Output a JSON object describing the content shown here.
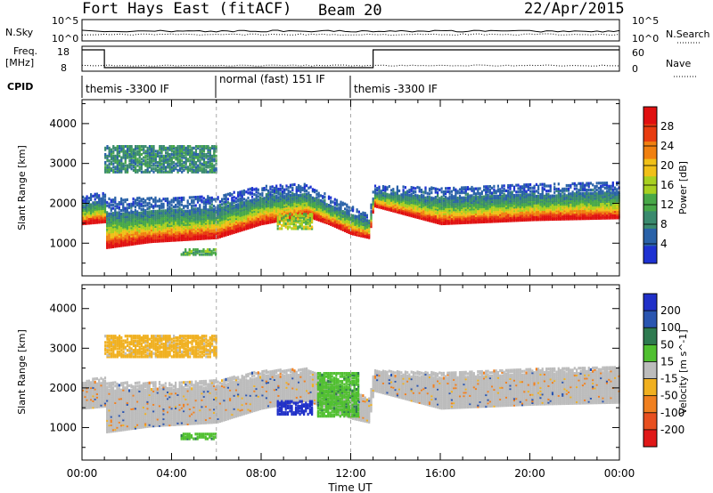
{
  "header": {
    "station": "Fort Hays East (fitACF)",
    "beam": "Beam 20",
    "date": "22/Apr/2015"
  },
  "side_labels": {
    "nsky": "N.Sky",
    "freq": "Freq.",
    "freq_unit": "[MHz]",
    "cpid": "CPID",
    "nsearch": "N.Search",
    "nave": "Nave"
  },
  "top_axes": {
    "nsky_ticks": [
      "10^5",
      "10^0"
    ],
    "nsearch_ticks": [
      "10^5",
      "10^0"
    ],
    "freq_ticks": [
      "18",
      "8"
    ],
    "nave_ticks": [
      "60",
      "0"
    ]
  },
  "modes": [
    {
      "label": "themis -3300 IF",
      "start_hour": 0,
      "end_hour": 6
    },
    {
      "label": "normal (fast) 151 IF",
      "start_hour": 6,
      "end_hour": 12
    },
    {
      "label": "themis -3300 IF",
      "start_hour": 12,
      "end_hour": 24
    }
  ],
  "x_axis": {
    "label": "Time UT",
    "tick_labels": [
      "00:00",
      "04:00",
      "08:00",
      "12:00",
      "16:00",
      "20:00",
      "00:00"
    ],
    "range_hours": [
      0,
      24
    ]
  },
  "colors": {
    "power_scale": [
      "#1e32d2",
      "#2a62a8",
      "#3a8a6e",
      "#48a848",
      "#a8d020",
      "#f0c018",
      "#f08010",
      "#e83c10",
      "#e01010"
    ],
    "velocity_scale": [
      "#2030c8",
      "#2a55b0",
      "#2e7a50",
      "#50c030",
      "#bcbcbc",
      "#f0b020",
      "#f08020",
      "#e85020",
      "#e01818"
    ]
  },
  "chart_data": [
    {
      "type": "heatmap",
      "name": "power",
      "ylabel": "Slant Range [km]",
      "y_ticks": [
        1000,
        2000,
        3000,
        4000
      ],
      "ylim": [
        180,
        4600
      ],
      "x_unit": "hours UT",
      "colorbar": {
        "label": "Power [dB]",
        "ticks": [
          "4",
          "8",
          "12",
          "16",
          "20",
          "24",
          "28"
        ],
        "range": [
          0,
          32
        ]
      },
      "echo_bands": [
        {
          "x": [
            0.0,
            1.0,
            1.05,
            3.0,
            6.0,
            8.0,
            10.0,
            11.0,
            12.0,
            12.8,
            13.0,
            16.0,
            20.0,
            24.0
          ],
          "low_km": [
            1450,
            1500,
            850,
            1000,
            1100,
            1450,
            1650,
            1450,
            1200,
            1100,
            1900,
            1450,
            1550,
            1600
          ],
          "high_km": [
            2150,
            2250,
            2100,
            2100,
            2150,
            2400,
            2450,
            2150,
            1900,
            1700,
            2400,
            2350,
            2450,
            2500
          ],
          "peak_power_db": 28
        }
      ],
      "patches": [
        {
          "x": [
            8.7,
            10.3
          ],
          "km": [
            1330,
            1700
          ],
          "power_db": 16
        },
        {
          "x": [
            4.4,
            6.0
          ],
          "km": [
            680,
            830
          ],
          "power_db": 12
        },
        {
          "x": [
            1.0,
            6.0
          ],
          "km": [
            2750,
            3400
          ],
          "power_db": 8
        }
      ]
    },
    {
      "type": "heatmap",
      "name": "velocity",
      "ylabel": "Slant Range [km]",
      "y_ticks": [
        1000,
        2000,
        3000,
        4000
      ],
      "ylim": [
        180,
        4600
      ],
      "x_unit": "hours UT",
      "colorbar": {
        "label": "Velocity [m s^-1]",
        "ticks": [
          "200",
          "100",
          "50",
          "15",
          "-15",
          "-50",
          "-100",
          "-200"
        ],
        "range": [
          -250,
          250
        ]
      },
      "echo_bands": [
        {
          "x": [
            0.0,
            1.0,
            1.05,
            3.0,
            6.0,
            8.0,
            10.0,
            11.0,
            12.0,
            12.8,
            13.0,
            16.0,
            20.0,
            24.0
          ],
          "low_km": [
            1450,
            1500,
            850,
            1000,
            1100,
            1450,
            1650,
            1450,
            1200,
            1100,
            1900,
            1450,
            1550,
            1600
          ],
          "high_km": [
            2150,
            2250,
            2100,
            2100,
            2150,
            2400,
            2450,
            2150,
            1900,
            1700,
            2400,
            2350,
            2450,
            2500
          ],
          "velocity": 0
        }
      ],
      "patches": [
        {
          "x": [
            8.7,
            10.3
          ],
          "km": [
            1300,
            1650
          ],
          "velocity": 220
        },
        {
          "x": [
            4.4,
            6.0
          ],
          "km": [
            680,
            830
          ],
          "velocity": 40
        },
        {
          "x": [
            10.5,
            12.3
          ],
          "km": [
            1250,
            2350
          ],
          "velocity": 40
        },
        {
          "x": [
            1.0,
            6.0
          ],
          "km": [
            2750,
            3300
          ],
          "velocity": -60
        }
      ]
    }
  ]
}
